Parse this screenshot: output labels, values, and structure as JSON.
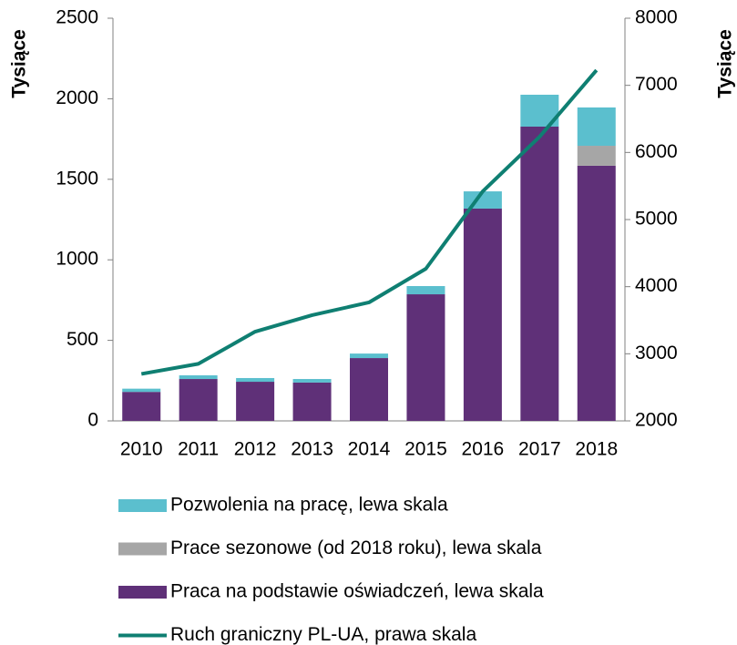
{
  "chart_data": {
    "type": "bar",
    "stacked": true,
    "categories": [
      "2010",
      "2011",
      "2012",
      "2013",
      "2014",
      "2015",
      "2016",
      "2017",
      "2018"
    ],
    "y_label": "Tysiące",
    "y2_label": "Tysiące",
    "ylim": [
      0,
      2500
    ],
    "yticks": [
      0,
      500,
      1000,
      1500,
      2000,
      2500
    ],
    "y2lim": [
      2000,
      8000
    ],
    "y2ticks": [
      2000,
      3000,
      4000,
      5000,
      6000,
      7000,
      8000
    ],
    "grid": false,
    "series": [
      {
        "name": "Pozwolenia na pracę, lewa skala",
        "color": "#5bbfce",
        "values": [
          20,
          23,
          23,
          22,
          28,
          51,
          107,
          198,
          238
        ]
      },
      {
        "name": "Prace sezonowe (od 2018 roku), lewa skala",
        "color": "#a6a6a6",
        "values": [
          null,
          null,
          null,
          null,
          null,
          null,
          null,
          null,
          124
        ]
      },
      {
        "name": "Praca na podstawie oświadczeń, lewa skala",
        "color": "#5f3078",
        "values": [
          180,
          260,
          243,
          238,
          390,
          786,
          1318,
          1827,
          1584
        ]
      },
      {
        "name": "Ruch graniczny PL-UA, prawa skala",
        "color": "#0f7f72",
        "type": "line",
        "axis": "y2",
        "values": [
          2700,
          2850,
          3330,
          3575,
          3765,
          4267,
          5420,
          6235,
          7226
        ]
      }
    ]
  }
}
